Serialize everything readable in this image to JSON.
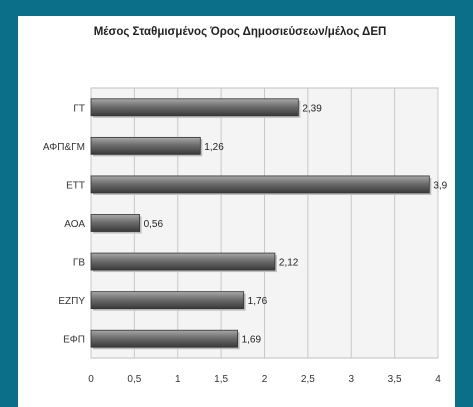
{
  "chart_data": {
    "type": "bar",
    "orientation": "horizontal",
    "title": "Μέσος Σταθμισμένος Όρος Δημοσιεύσεων/μέλος ΔΕΠ",
    "categories": [
      "ΓΤ",
      "ΑΦΠ&ΓΜ",
      "ΕΤΤ",
      "ΑΟΑ",
      "ΓΒ",
      "ΕΖΠΥ",
      "ΕΦΠ"
    ],
    "values": [
      2.39,
      1.26,
      3.9,
      0.56,
      2.12,
      1.76,
      1.69
    ],
    "value_labels": [
      "2,39",
      "1,26",
      "3,9",
      "0,56",
      "2,12",
      "1,76",
      "1,69"
    ],
    "xlim": [
      0,
      4
    ],
    "xticks": [
      0,
      0.5,
      1,
      1.5,
      2,
      2.5,
      3,
      3.5,
      4
    ],
    "xtick_labels": [
      "0",
      "0,5",
      "1",
      "1,5",
      "2",
      "2,5",
      "3",
      "3,5",
      "4"
    ],
    "xlabel": "",
    "ylabel": "",
    "grid": true,
    "bar_color": "#6e6e6e",
    "background_color": "#0b6f8a"
  }
}
